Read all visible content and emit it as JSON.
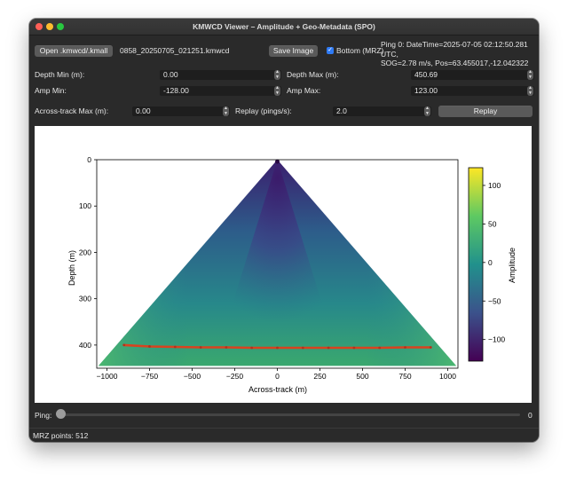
{
  "window": {
    "title": "KMWCD Viewer – Amplitude + Geo-Metadata (SPO)"
  },
  "toolbar": {
    "open_label": "Open .kmwcd/.kmall",
    "filename": "0858_20250705_021251.kmwcd",
    "save_label": "Save Image",
    "bottom_label": "Bottom (MRZ)",
    "bottom_checked": true,
    "ping_info_line1": "Ping 0: DateTime=2025-07-05 02:12:50.281 UTC,",
    "ping_info_line2": "SOG=2.78 m/s, Pos=63.455017,-12.042322"
  },
  "controls": {
    "depth_min_label": "Depth Min (m):",
    "depth_min_value": "0.00",
    "depth_max_label": "Depth Max (m):",
    "depth_max_value": "450.69",
    "amp_min_label": "Amp Min:",
    "amp_min_value": "-128.00",
    "amp_max_label": "Amp Max:",
    "amp_max_value": "123.00",
    "across_max_label": "Across-track Max (m):",
    "across_max_value": "0.00",
    "replay_rate_label": "Replay (pings/s):",
    "replay_rate_value": "2.0",
    "replay_button": "Replay"
  },
  "slider": {
    "label": "Ping:",
    "value": "0",
    "fraction": 0
  },
  "status": {
    "text": "MRZ points: 512"
  },
  "chart_data": {
    "type": "heatmap",
    "title": "",
    "xlabel": "Across-track (m)",
    "ylabel": "Depth (m)",
    "xlim": [
      -1060,
      1060
    ],
    "ylim": [
      450,
      0
    ],
    "x_ticks": [
      -1000,
      -750,
      -500,
      -250,
      0,
      250,
      500,
      750,
      1000
    ],
    "y_ticks": [
      0,
      100,
      200,
      300,
      400
    ],
    "fan_apex": [
      0,
      0
    ],
    "fan_edges": [
      [
        -1050,
        445
      ],
      [
        1050,
        445
      ]
    ],
    "bottom_line": {
      "x": [
        -900,
        -750,
        -600,
        -450,
        -300,
        -150,
        0,
        150,
        300,
        450,
        600,
        750,
        900
      ],
      "y": [
        400,
        403,
        404,
        405,
        405,
        406,
        406,
        406,
        406,
        406,
        406,
        405,
        405
      ]
    },
    "colorbar": {
      "label": "Amplitude",
      "min": -128,
      "max": 123,
      "ticks": [
        100,
        50,
        0,
        -50,
        -100
      ],
      "colormap": "viridis"
    }
  }
}
